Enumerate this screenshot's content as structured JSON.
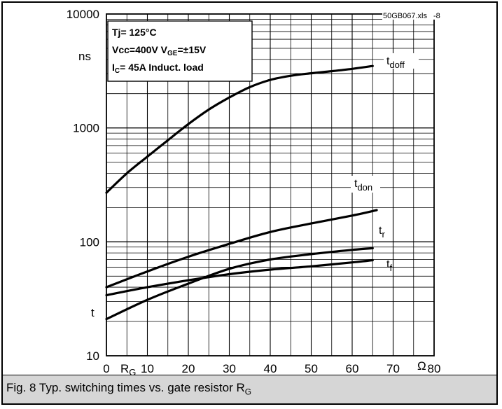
{
  "file_note": "50GB067.xls",
  "file_note_suffix": "-8",
  "conditions": {
    "line1": "Tj= 125°C",
    "line2_a": "Vcc=400V V",
    "line2_sub": "GE",
    "line2_b": "=±15V",
    "line3_a": "I",
    "line3_sub": "C",
    "line3_b": "= 45A Induct. load"
  },
  "caption": {
    "text": "Fig. 8 Typ. switching times vs. gate resistor R",
    "sub": "G"
  },
  "chart_data": {
    "type": "line",
    "y_scale": "log",
    "xlim": [
      0,
      80
    ],
    "ylim": [
      10,
      10000
    ],
    "x_ticks": [
      "0",
      "10",
      "20",
      "30",
      "40",
      "50",
      "60",
      "70",
      "80"
    ],
    "y_ticks": [
      "10",
      "100",
      "1000",
      "10000"
    ],
    "xlabel": "R",
    "xlabel_sub": "G",
    "x_unit": "Ω",
    "ylabel": "t",
    "y_unit": "ns",
    "grid": true,
    "series": [
      {
        "name": "t",
        "name_sub": "doff",
        "x": [
          0,
          5,
          10,
          15,
          20,
          25,
          30,
          35,
          40,
          45,
          50,
          55,
          60,
          65
        ],
        "y": [
          270,
          400,
          560,
          780,
          1080,
          1450,
          1850,
          2280,
          2640,
          2870,
          3020,
          3150,
          3300,
          3500
        ]
      },
      {
        "name": "t",
        "name_sub": "don",
        "x": [
          0,
          10,
          20,
          30,
          40,
          50,
          60,
          66
        ],
        "y": [
          40,
          55,
          74,
          96,
          122,
          145,
          170,
          190
        ]
      },
      {
        "name": "t",
        "name_sub": "r",
        "x": [
          0,
          10,
          20,
          30,
          40,
          50,
          60,
          65
        ],
        "y": [
          21,
          31,
          43,
          58,
          70,
          78,
          85,
          88
        ]
      },
      {
        "name": "t",
        "name_sub": "f",
        "x": [
          0,
          10,
          20,
          30,
          40,
          50,
          60,
          65
        ],
        "y": [
          34,
          40,
          46,
          52,
          57,
          61,
          66,
          69
        ]
      }
    ]
  }
}
